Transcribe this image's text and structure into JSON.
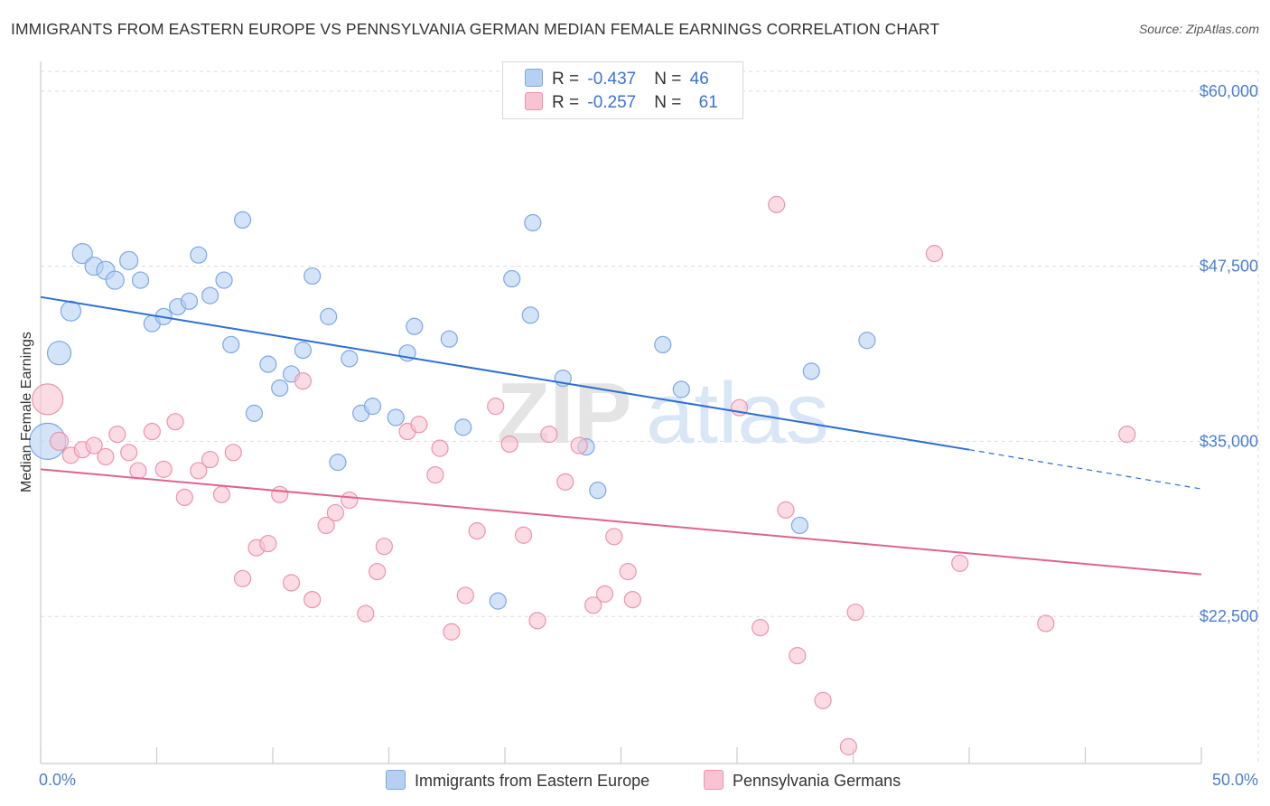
{
  "title": "IMMIGRANTS FROM EASTERN EUROPE VS PENNSYLVANIA GERMAN MEDIAN FEMALE EARNINGS CORRELATION CHART",
  "source": "Source: ZipAtlas.com",
  "watermark": {
    "zip": "ZIP",
    "atlas": "atlas"
  },
  "legend": {
    "r_label": "R = ",
    "n_label": "N = ",
    "rows": [
      {
        "r": "-0.437",
        "n": "46",
        "color": "#b6d0f3"
      },
      {
        "r": "-0.257",
        "n": "61",
        "color": "#f8c3d2"
      }
    ]
  },
  "colors": {
    "blue_fill": "#b6d0f3",
    "blue_stroke": "#7ea8e3",
    "blue_line": "#2d6fd2",
    "pink_fill": "#f8c3d2",
    "pink_stroke": "#ec94ae",
    "pink_line": "#e0628e",
    "grid": "#dddddd",
    "axis_text": "#4a7fd4"
  },
  "chart_data": {
    "type": "scatter",
    "title": "IMMIGRANTS FROM EASTERN EUROPE VS PENNSYLVANIA GERMAN MEDIAN FEMALE EARNINGS CORRELATION CHART",
    "xlabel": "",
    "ylabel": "Median Female Earnings",
    "xlim": [
      0,
      50
    ],
    "ylim": [
      12000,
      62500
    ],
    "x_tick_labels": [
      "0.0%",
      "50.0%"
    ],
    "y_ticks": [
      22500,
      35000,
      47500,
      60000
    ],
    "y_tick_labels": [
      "$22,500",
      "$35,000",
      "$47,500",
      "$60,000"
    ],
    "grid": true,
    "legend_position": "top-center",
    "series": [
      {
        "name": "Immigrants from Eastern Europe",
        "r": -0.437,
        "n": 46,
        "trend": {
          "x0": 0,
          "y0": 45300,
          "x1": 40,
          "y1": 34400,
          "dashed_to_x": 50,
          "dashed_to_y": 31600
        },
        "points": [
          [
            0.3,
            35000,
            20
          ],
          [
            0.8,
            41300,
            13
          ],
          [
            1.3,
            44300,
            11
          ],
          [
            1.8,
            48400,
            11
          ],
          [
            2.3,
            47500,
            10
          ],
          [
            2.8,
            47200,
            10
          ],
          [
            3.2,
            46500,
            10
          ],
          [
            3.8,
            47900,
            10
          ],
          [
            4.3,
            46500,
            9
          ],
          [
            4.8,
            43400,
            9
          ],
          [
            5.3,
            43900,
            9
          ],
          [
            5.9,
            44600,
            9
          ],
          [
            6.4,
            45000,
            9
          ],
          [
            6.8,
            48300,
            9
          ],
          [
            7.3,
            45400,
            9
          ],
          [
            7.9,
            46500,
            9
          ],
          [
            8.2,
            41900,
            9
          ],
          [
            8.7,
            50800,
            9
          ],
          [
            9.2,
            37000,
            9
          ],
          [
            9.8,
            40500,
            9
          ],
          [
            10.3,
            38800,
            9
          ],
          [
            10.8,
            39800,
            9
          ],
          [
            11.3,
            41500,
            9
          ],
          [
            11.7,
            46800,
            9
          ],
          [
            12.4,
            43900,
            9
          ],
          [
            12.8,
            33500,
            9
          ],
          [
            13.3,
            40900,
            9
          ],
          [
            13.8,
            37000,
            9
          ],
          [
            14.3,
            37500,
            9
          ],
          [
            15.3,
            36700,
            9
          ],
          [
            15.8,
            41300,
            9
          ],
          [
            16.1,
            43200,
            9
          ],
          [
            17.6,
            42300,
            9
          ],
          [
            18.2,
            36000,
            9
          ],
          [
            19.7,
            23600,
            9
          ],
          [
            20.3,
            46600,
            9
          ],
          [
            21.1,
            44000,
            9
          ],
          [
            21.2,
            50600,
            9
          ],
          [
            22.5,
            39500,
            9
          ],
          [
            23.5,
            34600,
            9
          ],
          [
            24.0,
            31500,
            9
          ],
          [
            26.8,
            41900,
            9
          ],
          [
            27.6,
            38700,
            9
          ],
          [
            32.7,
            29000,
            9
          ],
          [
            33.2,
            40000,
            9
          ],
          [
            35.6,
            42200,
            9
          ]
        ]
      },
      {
        "name": "Pennsylvania Germans",
        "r": -0.257,
        "n": 61,
        "trend": {
          "x0": 0,
          "y0": 33000,
          "x1": 50,
          "y1": 25500
        },
        "points": [
          [
            0.3,
            38000,
            17
          ],
          [
            0.8,
            35000,
            10
          ],
          [
            1.3,
            34000,
            9
          ],
          [
            1.8,
            34400,
            9
          ],
          [
            2.3,
            34700,
            9
          ],
          [
            2.8,
            33900,
            9
          ],
          [
            3.3,
            35500,
            9
          ],
          [
            3.8,
            34200,
            9
          ],
          [
            4.2,
            32900,
            9
          ],
          [
            4.8,
            35700,
            9
          ],
          [
            5.3,
            33000,
            9
          ],
          [
            5.8,
            36400,
            9
          ],
          [
            6.2,
            31000,
            9
          ],
          [
            6.8,
            32900,
            9
          ],
          [
            7.3,
            33700,
            9
          ],
          [
            7.8,
            31200,
            9
          ],
          [
            8.3,
            34200,
            9
          ],
          [
            8.7,
            25200,
            9
          ],
          [
            9.3,
            27400,
            9
          ],
          [
            9.8,
            27700,
            9
          ],
          [
            10.3,
            31200,
            9
          ],
          [
            10.8,
            24900,
            9
          ],
          [
            11.3,
            39300,
            9
          ],
          [
            11.7,
            23700,
            9
          ],
          [
            12.3,
            29000,
            9
          ],
          [
            12.7,
            29900,
            9
          ],
          [
            13.3,
            30800,
            9
          ],
          [
            14.0,
            22700,
            9
          ],
          [
            14.5,
            25700,
            9
          ],
          [
            14.8,
            27500,
            9
          ],
          [
            15.8,
            35700,
            9
          ],
          [
            16.3,
            36200,
            9
          ],
          [
            17.0,
            32600,
            9
          ],
          [
            17.2,
            34500,
            9
          ],
          [
            17.7,
            21400,
            9
          ],
          [
            18.3,
            24000,
            9
          ],
          [
            18.8,
            28600,
            9
          ],
          [
            19.6,
            37500,
            9
          ],
          [
            20.2,
            34800,
            9
          ],
          [
            20.8,
            28300,
            9
          ],
          [
            21.4,
            22200,
            9
          ],
          [
            21.9,
            35500,
            9
          ],
          [
            22.6,
            32100,
            9
          ],
          [
            23.2,
            34700,
            9
          ],
          [
            23.8,
            23300,
            9
          ],
          [
            24.3,
            24100,
            9
          ],
          [
            24.7,
            28200,
            9
          ],
          [
            25.3,
            25700,
            9
          ],
          [
            25.5,
            23700,
            9
          ],
          [
            30.1,
            37400,
            9
          ],
          [
            31.0,
            21700,
            9
          ],
          [
            31.7,
            51900,
            9
          ],
          [
            32.1,
            30100,
            9
          ],
          [
            32.6,
            19700,
            9
          ],
          [
            33.7,
            16500,
            9
          ],
          [
            34.8,
            13200,
            9
          ],
          [
            35.1,
            22800,
            9
          ],
          [
            38.5,
            48400,
            9
          ],
          [
            39.6,
            26300,
            9
          ],
          [
            43.3,
            22000,
            9
          ],
          [
            46.8,
            35500,
            9
          ]
        ]
      }
    ]
  }
}
